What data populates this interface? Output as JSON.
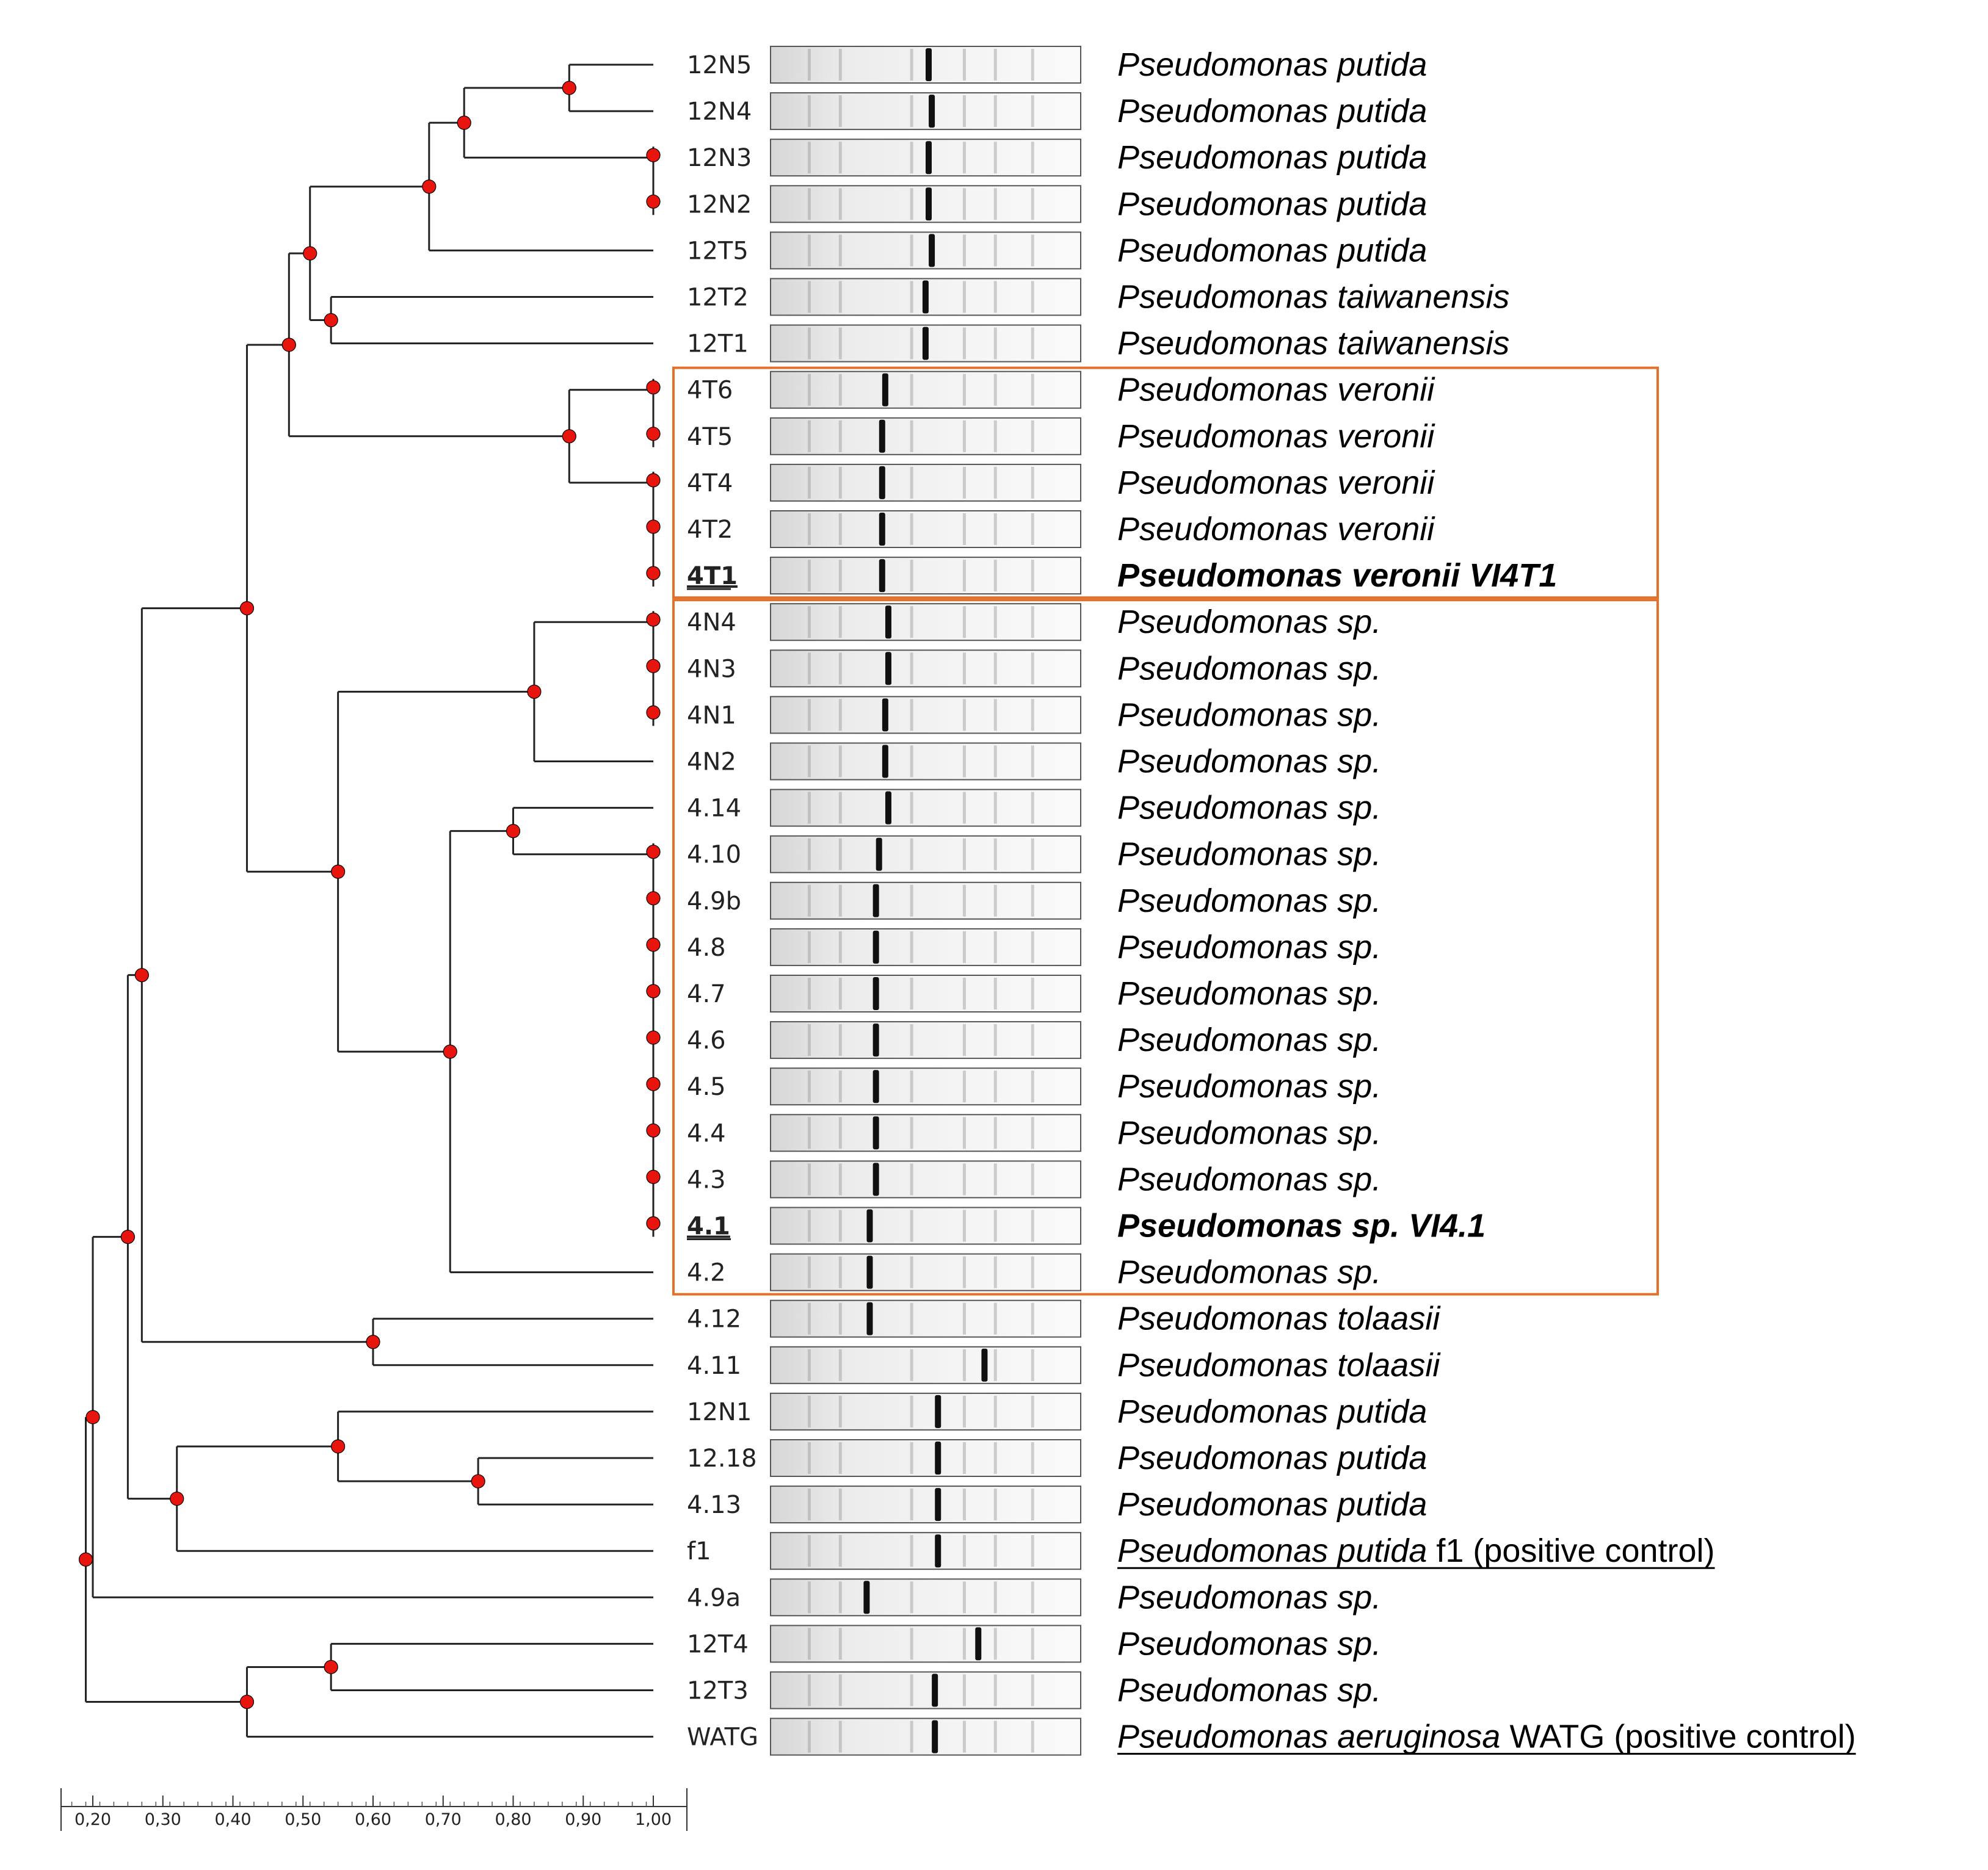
{
  "axis": {
    "min": 0.2,
    "max": 1.0,
    "ticks": [
      {
        "value": 0.2,
        "label": "0,20"
      },
      {
        "value": 0.3,
        "label": "0,30"
      },
      {
        "value": 0.4,
        "label": "0,40"
      },
      {
        "value": 0.5,
        "label": "0,50"
      },
      {
        "value": 0.6,
        "label": "0,60"
      },
      {
        "value": 0.7,
        "label": "0,70"
      },
      {
        "value": 0.8,
        "label": "0,80"
      },
      {
        "value": 0.9,
        "label": "0,90"
      },
      {
        "value": 1.0,
        "label": "1,00"
      }
    ]
  },
  "colors": {
    "node": "#e8140e",
    "highlight_box": "#e3712a",
    "tree": "#222222"
  },
  "strains": [
    {
      "id": "12N5",
      "species_italic": "Pseudomonas putida",
      "species_plain": "",
      "bold": false,
      "underline": false,
      "band": 0.5
    },
    {
      "id": "12N4",
      "species_italic": "Pseudomonas putida",
      "species_plain": "",
      "bold": false,
      "underline": false,
      "band": 0.51
    },
    {
      "id": "12N3",
      "species_italic": "Pseudomonas putida",
      "species_plain": "",
      "bold": false,
      "underline": false,
      "band": 0.5
    },
    {
      "id": "12N2",
      "species_italic": "Pseudomonas putida",
      "species_plain": "",
      "bold": false,
      "underline": false,
      "band": 0.5
    },
    {
      "id": "12T5",
      "species_italic": "Pseudomonas putida",
      "species_plain": "",
      "bold": false,
      "underline": false,
      "band": 0.51
    },
    {
      "id": "12T2",
      "species_italic": "Pseudomonas taiwanensis",
      "species_plain": "",
      "bold": false,
      "underline": false,
      "band": 0.49
    },
    {
      "id": "12T1",
      "species_italic": "Pseudomonas taiwanensis",
      "species_plain": "",
      "bold": false,
      "underline": false,
      "band": 0.49
    },
    {
      "id": "4T6",
      "species_italic": "Pseudomonas veronii",
      "species_plain": "",
      "bold": false,
      "underline": false,
      "band": 0.36
    },
    {
      "id": "4T5",
      "species_italic": "Pseudomonas veronii",
      "species_plain": "",
      "bold": false,
      "underline": false,
      "band": 0.35
    },
    {
      "id": "4T4",
      "species_italic": "Pseudomonas veronii",
      "species_plain": "",
      "bold": false,
      "underline": false,
      "band": 0.35
    },
    {
      "id": "4T2",
      "species_italic": "Pseudomonas veronii",
      "species_plain": "",
      "bold": false,
      "underline": false,
      "band": 0.35
    },
    {
      "id": "4T1",
      "species_italic": "Pseudomonas veronii VI4T1",
      "species_plain": "",
      "bold": true,
      "underline": true,
      "band": 0.35
    },
    {
      "id": "4N4",
      "species_italic": "Pseudomonas sp.",
      "species_plain": "",
      "bold": false,
      "underline": false,
      "band": 0.37
    },
    {
      "id": "4N3",
      "species_italic": "Pseudomonas sp.",
      "species_plain": "",
      "bold": false,
      "underline": false,
      "band": 0.37
    },
    {
      "id": "4N1",
      "species_italic": "Pseudomonas sp.",
      "species_plain": "",
      "bold": false,
      "underline": false,
      "band": 0.36
    },
    {
      "id": "4N2",
      "species_italic": "Pseudomonas sp.",
      "species_plain": "",
      "bold": false,
      "underline": false,
      "band": 0.36
    },
    {
      "id": "4.14",
      "species_italic": "Pseudomonas sp.",
      "species_plain": "",
      "bold": false,
      "underline": false,
      "band": 0.37
    },
    {
      "id": "4.10",
      "species_italic": "Pseudomonas sp.",
      "species_plain": "",
      "bold": false,
      "underline": false,
      "band": 0.34
    },
    {
      "id": "4.9b",
      "species_italic": "Pseudomonas sp.",
      "species_plain": "",
      "bold": false,
      "underline": false,
      "band": 0.33
    },
    {
      "id": "4.8",
      "species_italic": "Pseudomonas sp.",
      "species_plain": "",
      "bold": false,
      "underline": false,
      "band": 0.33
    },
    {
      "id": "4.7",
      "species_italic": "Pseudomonas sp.",
      "species_plain": "",
      "bold": false,
      "underline": false,
      "band": 0.33
    },
    {
      "id": "4.6",
      "species_italic": "Pseudomonas sp.",
      "species_plain": "",
      "bold": false,
      "underline": false,
      "band": 0.33
    },
    {
      "id": "4.5",
      "species_italic": "Pseudomonas sp.",
      "species_plain": "",
      "bold": false,
      "underline": false,
      "band": 0.33
    },
    {
      "id": "4.4",
      "species_italic": "Pseudomonas sp.",
      "species_plain": "",
      "bold": false,
      "underline": false,
      "band": 0.33
    },
    {
      "id": "4.3",
      "species_italic": "Pseudomonas sp.",
      "species_plain": "",
      "bold": false,
      "underline": false,
      "band": 0.33
    },
    {
      "id": "4.1",
      "species_italic": "Pseudomonas sp. VI4.1",
      "species_plain": "",
      "bold": true,
      "underline": true,
      "band": 0.31
    },
    {
      "id": "4.2",
      "species_italic": "Pseudomonas sp.",
      "species_plain": "",
      "bold": false,
      "underline": false,
      "band": 0.31
    },
    {
      "id": "4.12",
      "species_italic": "Pseudomonas tolaasii",
      "species_plain": "",
      "bold": false,
      "underline": false,
      "band": 0.31
    },
    {
      "id": "4.11",
      "species_italic": "Pseudomonas tolaasii",
      "species_plain": "",
      "bold": false,
      "underline": false,
      "band": 0.68
    },
    {
      "id": "12N1",
      "species_italic": "Pseudomonas putida",
      "species_plain": "",
      "bold": false,
      "underline": false,
      "band": 0.53
    },
    {
      "id": "12.18",
      "species_italic": "Pseudomonas putida",
      "species_plain": "",
      "bold": false,
      "underline": false,
      "band": 0.53
    },
    {
      "id": "4.13",
      "species_italic": "Pseudomonas putida",
      "species_plain": "",
      "bold": false,
      "underline": false,
      "band": 0.53
    },
    {
      "id": "f1",
      "species_italic": "Pseudomonas putida",
      "species_plain": " f1 (positive control)",
      "bold": false,
      "underline": false,
      "underline_label": true,
      "band": 0.53
    },
    {
      "id": "4.9a",
      "species_italic": "Pseudomonas sp.",
      "species_plain": "",
      "bold": false,
      "underline": false,
      "band": 0.3
    },
    {
      "id": "12T4",
      "species_italic": "Pseudomonas sp.",
      "species_plain": "",
      "bold": false,
      "underline": false,
      "band": 0.66
    },
    {
      "id": "12T3",
      "species_italic": "Pseudomonas sp.",
      "species_plain": "",
      "bold": false,
      "underline": false,
      "band": 0.52
    },
    {
      "id": "WATG",
      "species_italic": "Pseudomonas aeruginosa",
      "species_plain": " WATG (positive control)",
      "bold": false,
      "underline": false,
      "underline_label": true,
      "band": 0.52
    }
  ],
  "clusters": [
    {
      "name": "c_12N5_12N4",
      "similarity": 0.88,
      "children": [
        "L:12N5",
        "L:12N4"
      ]
    },
    {
      "name": "c_12N3_12N2",
      "similarity": 1.0,
      "children": [
        "L:12N3",
        "L:12N2"
      ]
    },
    {
      "name": "c_12N5_12N2",
      "similarity": 0.73,
      "children": [
        "C:c_12N5_12N4",
        "C:c_12N3_12N2"
      ]
    },
    {
      "name": "c_12N5_12T5",
      "similarity": 0.68,
      "children": [
        "C:c_12N5_12N2",
        "L:12T5"
      ]
    },
    {
      "name": "c_12T2_12T1",
      "similarity": 0.54,
      "children": [
        "L:12T2",
        "L:12T1"
      ]
    },
    {
      "name": "c_putida_taiwan",
      "similarity": 0.51,
      "children": [
        "C:c_12N5_12T5",
        "C:c_12T2_12T1"
      ]
    },
    {
      "name": "c_4T6_4T5",
      "similarity": 1.0,
      "children": [
        "L:4T6",
        "L:4T5"
      ]
    },
    {
      "name": "c_4T4_4T1",
      "similarity": 1.0,
      "children": [
        "L:4T4",
        "L:4T2",
        "L:4T1"
      ]
    },
    {
      "name": "c_veronii",
      "similarity": 0.88,
      "children": [
        "C:c_4T6_4T5",
        "C:c_4T4_4T1"
      ]
    },
    {
      "name": "c_upper",
      "similarity": 0.48,
      "children": [
        "C:c_putida_taiwan",
        "C:c_veronii"
      ]
    },
    {
      "name": "c_4N4_4N1",
      "similarity": 1.0,
      "children": [
        "L:4N4",
        "L:4N3",
        "L:4N1"
      ]
    },
    {
      "name": "c_4N",
      "similarity": 0.83,
      "children": [
        "C:c_4N4_4N1",
        "L:4N2"
      ]
    },
    {
      "name": "c_410_41",
      "similarity": 1.0,
      "children": [
        "L:4.10",
        "L:4.9b",
        "L:4.8",
        "L:4.7",
        "L:4.6",
        "L:4.5",
        "L:4.4",
        "L:4.3",
        "L:4.1"
      ]
    },
    {
      "name": "c_414_41",
      "similarity": 0.8,
      "children": [
        "L:4.14",
        "C:c_410_41"
      ]
    },
    {
      "name": "c_414_42",
      "similarity": 0.71,
      "children": [
        "C:c_414_41",
        "L:4.2"
      ]
    },
    {
      "name": "c_sp",
      "similarity": 0.55,
      "children": [
        "C:c_4N",
        "C:c_414_42"
      ]
    },
    {
      "name": "c_mid",
      "similarity": 0.42,
      "children": [
        "C:c_upper",
        "C:c_sp"
      ]
    },
    {
      "name": "c_tolaasii",
      "similarity": 0.6,
      "children": [
        "L:4.12",
        "L:4.11"
      ]
    },
    {
      "name": "c_A",
      "similarity": 0.27,
      "children": [
        "C:c_mid",
        "C:c_tolaasii"
      ]
    },
    {
      "name": "c_1218_413",
      "similarity": 0.75,
      "children": [
        "L:12.18",
        "L:4.13"
      ]
    },
    {
      "name": "c_12N1_413",
      "similarity": 0.55,
      "children": [
        "L:12N1",
        "C:c_1218_413"
      ]
    },
    {
      "name": "c_putida2",
      "similarity": 0.32,
      "children": [
        "C:c_12N1_413",
        "L:f1"
      ]
    },
    {
      "name": "c_B",
      "similarity": 0.25,
      "children": [
        "C:c_A",
        "C:c_putida2"
      ]
    },
    {
      "name": "c_C",
      "similarity": 0.2,
      "children": [
        "C:c_B",
        "L:4.9a"
      ]
    },
    {
      "name": "c_12T4_12T3",
      "similarity": 0.54,
      "children": [
        "L:12T4",
        "L:12T3"
      ]
    },
    {
      "name": "c_12T_WATG",
      "similarity": 0.42,
      "children": [
        "C:c_12T4_12T3",
        "L:WATG"
      ]
    },
    {
      "name": "c_root",
      "similarity": 0.19,
      "children": [
        "C:c_C",
        "C:c_12T_WATG"
      ]
    }
  ],
  "highlight_groups": [
    {
      "name": "veronii-group",
      "from": "4T6",
      "to": "4T1"
    },
    {
      "name": "sp-group",
      "from": "4N4",
      "to": "4.2"
    }
  ]
}
